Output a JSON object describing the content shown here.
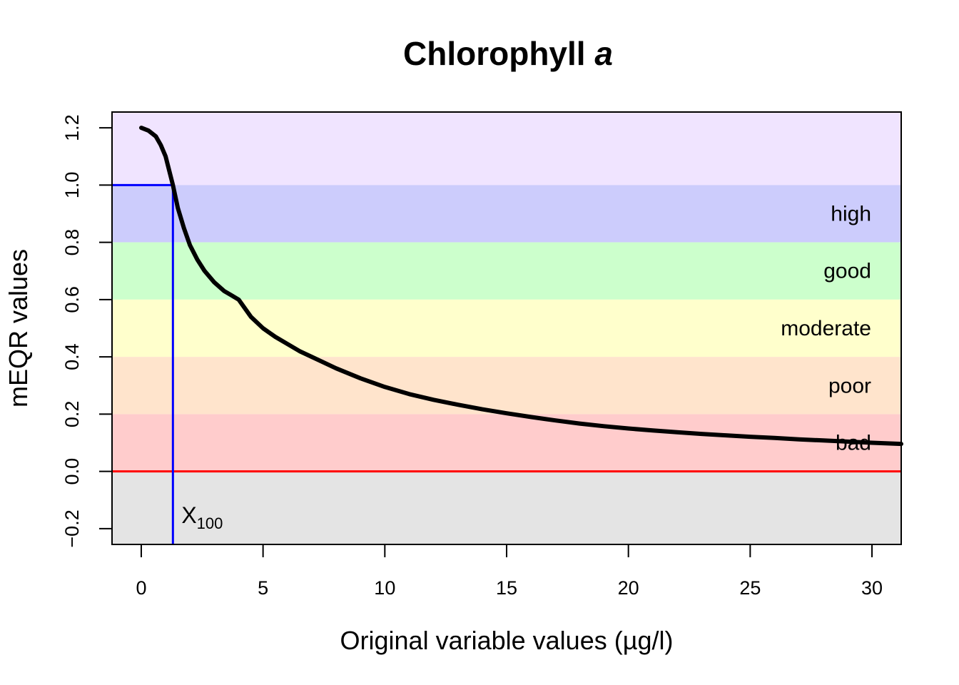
{
  "chart_data": {
    "type": "line",
    "title": "Chlorophyll",
    "title_italic": "a",
    "xlabel": "Original variable values (µg/l)",
    "ylabel": "mEQR values",
    "xlim": [
      -1.2,
      31.2
    ],
    "ylim": [
      -0.255,
      1.255
    ],
    "x_ticks": [
      0,
      5,
      10,
      15,
      20,
      25,
      30
    ],
    "y_ticks": [
      -0.2,
      0.0,
      0.2,
      0.4,
      0.6,
      0.8,
      1.0,
      1.2
    ],
    "x_tick_labels": [
      "0",
      "5",
      "10",
      "15",
      "20",
      "25",
      "30"
    ],
    "y_tick_labels": [
      "−0.2",
      "0.0",
      "0.2",
      "0.4",
      "0.6",
      "0.8",
      "1.0",
      "1.2"
    ],
    "grid": false,
    "bands": [
      {
        "label": "",
        "from": 1.0,
        "to": 1.255,
        "color": "#f0e4ff"
      },
      {
        "label": "high",
        "from": 0.8,
        "to": 1.0,
        "color": "#ccccfc"
      },
      {
        "label": "good",
        "from": 0.6,
        "to": 0.8,
        "color": "#ccffcc"
      },
      {
        "label": "moderate",
        "from": 0.4,
        "to": 0.6,
        "color": "#ffffcc"
      },
      {
        "label": "poor",
        "from": 0.2,
        "to": 0.4,
        "color": "#ffe4cc"
      },
      {
        "label": "bad",
        "from": 0.0,
        "to": 0.2,
        "color": "#ffcccc"
      },
      {
        "label": "",
        "from": -0.255,
        "to": 0.0,
        "color": "#e4e4e4"
      }
    ],
    "reference_lines": {
      "zero_line": {
        "y": 0.0,
        "color": "#ff0000"
      },
      "x100": {
        "x": 1.3,
        "y": 1.0,
        "label": "X",
        "label_sub": "100",
        "color": "#0000ff"
      }
    },
    "series": [
      {
        "color": "#000000",
        "x": [
          0.0,
          0.3,
          0.6,
          0.8,
          1.0,
          1.15,
          1.3,
          1.5,
          1.75,
          2.0,
          2.3,
          2.6,
          3.0,
          3.4,
          3.7,
          4.0,
          4.5,
          5.0,
          5.5,
          6.0,
          6.5,
          7.0,
          8.0,
          9.0,
          10.0,
          11.0,
          12.0,
          13.0,
          14.0,
          15.0,
          16.0,
          17.0,
          18.0,
          19.0,
          20.0,
          21.0,
          22.0,
          23.0,
          24.0,
          25.0,
          26.0,
          27.0,
          28.0,
          29.0,
          30.0,
          31.2
        ],
        "y": [
          1.2,
          1.19,
          1.17,
          1.14,
          1.1,
          1.05,
          1.0,
          0.92,
          0.85,
          0.79,
          0.74,
          0.7,
          0.66,
          0.63,
          0.615,
          0.6,
          0.54,
          0.5,
          0.47,
          0.445,
          0.42,
          0.4,
          0.36,
          0.325,
          0.295,
          0.27,
          0.25,
          0.233,
          0.217,
          0.203,
          0.19,
          0.178,
          0.167,
          0.158,
          0.15,
          0.143,
          0.137,
          0.131,
          0.126,
          0.121,
          0.117,
          0.112,
          0.108,
          0.104,
          0.1,
          0.096
        ]
      }
    ]
  }
}
